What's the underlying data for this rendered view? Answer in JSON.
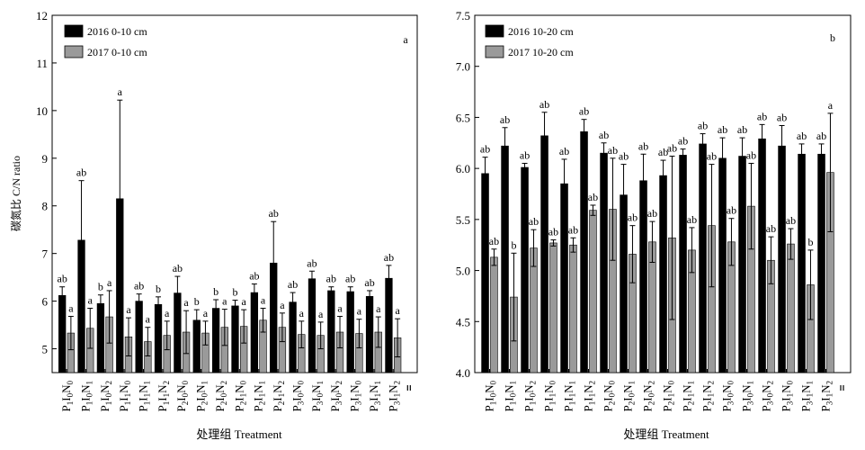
{
  "chart_data": [
    {
      "type": "bar",
      "panel_label": "a",
      "ylabel": "碳氮比 C/N ratio",
      "xlabel": "处理组 Treatment",
      "ylim": [
        4.5,
        12
      ],
      "yticks": [
        "5",
        "6",
        "7",
        "8",
        "9",
        "10",
        "11",
        "12"
      ],
      "legend_position": "top-left",
      "categories": [
        {
          "p": "1",
          "i": "0",
          "n": "0"
        },
        {
          "p": "1",
          "i": "0",
          "n": "1"
        },
        {
          "p": "1",
          "i": "0",
          "n": "2"
        },
        {
          "p": "1",
          "i": "1",
          "n": "0"
        },
        {
          "p": "1",
          "i": "1",
          "n": "1"
        },
        {
          "p": "1",
          "i": "1",
          "n": "2"
        },
        {
          "p": "2",
          "i": "0",
          "n": "0"
        },
        {
          "p": "2",
          "i": "0",
          "n": "1"
        },
        {
          "p": "2",
          "i": "0",
          "n": "2"
        },
        {
          "p": "2",
          "i": "1",
          "n": "0"
        },
        {
          "p": "2",
          "i": "1",
          "n": "1"
        },
        {
          "p": "2",
          "i": "1",
          "n": "2"
        },
        {
          "p": "3",
          "i": "0",
          "n": "0"
        },
        {
          "p": "3",
          "i": "0",
          "n": "1"
        },
        {
          "p": "3",
          "i": "0",
          "n": "2"
        },
        {
          "p": "3",
          "i": "1",
          "n": "0"
        },
        {
          "p": "3",
          "i": "1",
          "n": "1"
        },
        {
          "p": "3",
          "i": "1",
          "n": "2"
        }
      ],
      "series": [
        {
          "name": "2016 0-10 cm",
          "color": "#000000",
          "values": [
            6.12,
            7.28,
            5.95,
            8.15,
            6.0,
            5.93,
            6.17,
            5.6,
            5.85,
            5.9,
            6.18,
            6.8,
            5.98,
            6.47,
            6.22,
            6.2,
            6.1,
            6.48
          ],
          "errors": [
            0.18,
            1.25,
            0.18,
            2.07,
            0.15,
            0.16,
            0.35,
            0.22,
            0.18,
            0.12,
            0.18,
            0.87,
            0.2,
            0.16,
            0.08,
            0.1,
            0.12,
            0.27
          ],
          "letters": [
            "ab",
            "ab",
            "b",
            "a",
            "ab",
            "b",
            "ab",
            "b",
            "b",
            "b",
            "ab",
            "ab",
            "ab",
            "ab",
            "ab",
            "ab",
            "ab",
            "ab"
          ]
        },
        {
          "name": "2017 0-10 cm",
          "color": "#9a9a9a",
          "values": [
            5.33,
            5.43,
            5.67,
            5.25,
            5.15,
            5.28,
            5.35,
            5.33,
            5.45,
            5.47,
            5.6,
            5.45,
            5.3,
            5.28,
            5.35,
            5.32,
            5.35,
            5.23
          ],
          "errors": [
            0.35,
            0.42,
            0.55,
            0.4,
            0.3,
            0.3,
            0.45,
            0.25,
            0.38,
            0.35,
            0.25,
            0.3,
            0.28,
            0.28,
            0.33,
            0.3,
            0.32,
            0.4
          ],
          "letters": [
            "a",
            "a",
            "a",
            "a",
            "a",
            "a",
            "a",
            "a",
            "a",
            "a",
            "a",
            "a",
            "a",
            "a",
            "a",
            "a",
            "a",
            "a"
          ]
        }
      ]
    },
    {
      "type": "bar",
      "panel_label": "b",
      "ylabel": "",
      "xlabel": "处理组 Treatment",
      "ylim": [
        4.0,
        7.5
      ],
      "yticks": [
        "4.0",
        "4.5",
        "5.0",
        "5.5",
        "6.0",
        "6.5",
        "7.0",
        "7.5"
      ],
      "legend_position": "top-left",
      "categories": [
        {
          "p": "1",
          "i": "0",
          "n": "0"
        },
        {
          "p": "1",
          "i": "0",
          "n": "1"
        },
        {
          "p": "1",
          "i": "0",
          "n": "2"
        },
        {
          "p": "1",
          "i": "1",
          "n": "0"
        },
        {
          "p": "1",
          "i": "1",
          "n": "1"
        },
        {
          "p": "1",
          "i": "1",
          "n": "2"
        },
        {
          "p": "2",
          "i": "0",
          "n": "0"
        },
        {
          "p": "2",
          "i": "0",
          "n": "1"
        },
        {
          "p": "2",
          "i": "0",
          "n": "2"
        },
        {
          "p": "2",
          "i": "1",
          "n": "0"
        },
        {
          "p": "2",
          "i": "1",
          "n": "1"
        },
        {
          "p": "2",
          "i": "1",
          "n": "2"
        },
        {
          "p": "3",
          "i": "0",
          "n": "0"
        },
        {
          "p": "3",
          "i": "0",
          "n": "1"
        },
        {
          "p": "3",
          "i": "0",
          "n": "2"
        },
        {
          "p": "3",
          "i": "1",
          "n": "0"
        },
        {
          "p": "3",
          "i": "1",
          "n": "1"
        },
        {
          "p": "3",
          "i": "1",
          "n": "2"
        }
      ],
      "series": [
        {
          "name": "2016 10-20 cm",
          "color": "#000000",
          "values": [
            5.95,
            6.22,
            6.01,
            6.32,
            5.85,
            6.36,
            6.15,
            5.74,
            5.88,
            5.93,
            6.13,
            6.24,
            6.1,
            6.12,
            6.29,
            6.22,
            6.14,
            6.14
          ],
          "errors": [
            0.16,
            0.18,
            0.04,
            0.23,
            0.24,
            0.12,
            0.1,
            0.3,
            0.26,
            0.15,
            0.06,
            0.1,
            0.2,
            0.18,
            0.14,
            0.2,
            0.1,
            0.1
          ],
          "letters": [
            "ab",
            "ab",
            "ab",
            "ab",
            "ab",
            "ab",
            "ab",
            "ab",
            "ab",
            "ab",
            "ab",
            "ab",
            "ab",
            "ab",
            "ab",
            "ab",
            "ab",
            "ab"
          ]
        },
        {
          "name": "2017 10-20 cm",
          "color": "#9a9a9a",
          "values": [
            5.13,
            4.74,
            5.22,
            5.27,
            5.25,
            5.59,
            5.6,
            5.16,
            5.28,
            5.32,
            5.2,
            5.44,
            5.28,
            5.63,
            5.1,
            5.26,
            4.86,
            5.96
          ],
          "errors": [
            0.08,
            0.43,
            0.18,
            0.03,
            0.07,
            0.05,
            0.5,
            0.28,
            0.2,
            0.8,
            0.22,
            0.6,
            0.23,
            0.42,
            0.23,
            0.15,
            0.34,
            0.58
          ],
          "letters": [
            "ab",
            "b",
            "ab",
            "ab",
            "ab",
            "ab",
            "ab",
            "ab",
            "ab",
            "ab",
            "ab",
            "ab",
            "ab",
            "ab",
            "ab",
            "ab",
            "b",
            "a"
          ]
        }
      ]
    }
  ]
}
